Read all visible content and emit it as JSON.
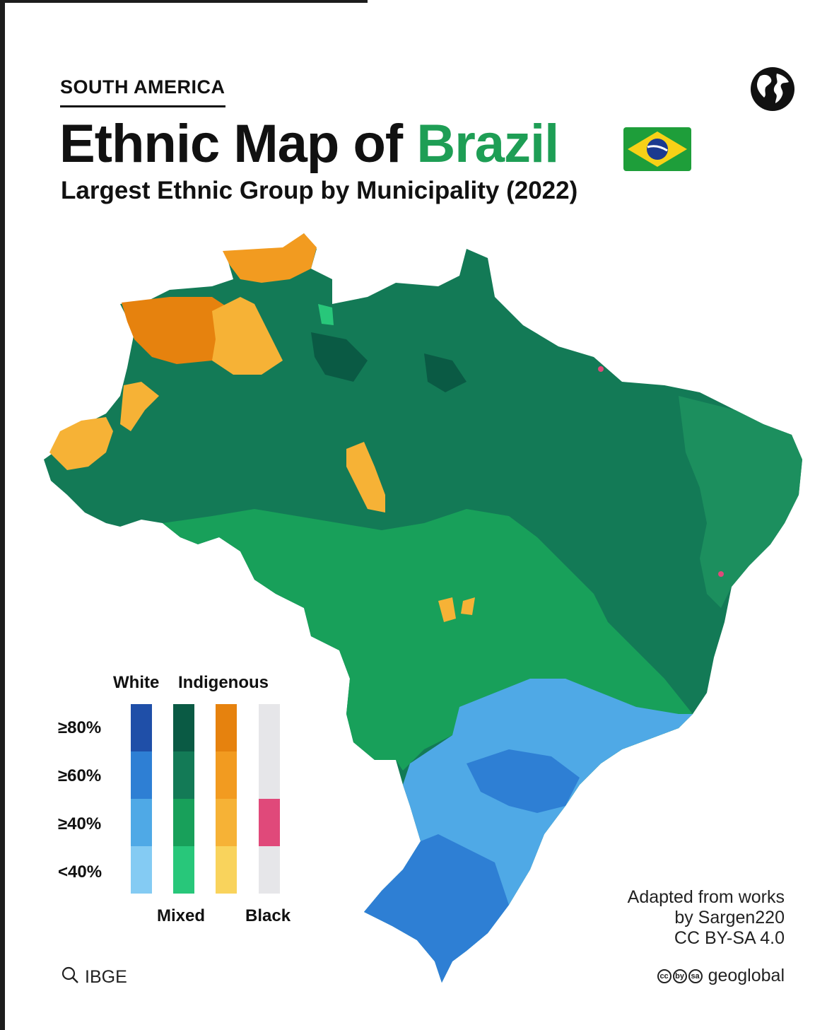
{
  "header": {
    "kicker": "SOUTH AMERICA",
    "title_lead": "Ethnic Map of",
    "title_accent": "Brazil",
    "subtitle": "Largest Ethnic Group by Municipality (2022)",
    "flag_icon": "brazil-flag-icon",
    "globe_icon": "globe-icon"
  },
  "legend": {
    "top_labels": [
      "White",
      "Indigenous"
    ],
    "bottom_labels": [
      "Mixed",
      "Black"
    ],
    "levels": [
      "≥80%",
      "≥60%",
      "≥40%",
      "<40%"
    ],
    "bars": [
      {
        "group": "White",
        "colors": [
          "#1f4fa8",
          "#2e7fd4",
          "#4fa9e6",
          "#84cbf3"
        ]
      },
      {
        "group": "Mixed",
        "colors": [
          "#0a5a44",
          "#137a56",
          "#18a05a",
          "#28c77a"
        ]
      },
      {
        "group": "Indigenous",
        "colors": [
          "#e6820e",
          "#f29b20",
          "#f6b236",
          "#f9d35c"
        ]
      },
      {
        "group": "Black",
        "colors": [
          "#e6e6e9",
          "#e6e6e9",
          "#e0497a",
          "#e6e6e9"
        ]
      }
    ]
  },
  "credit": {
    "line1": "Adapted from works",
    "line2": "by Sargen220",
    "line3": "CC BY-SA 4.0"
  },
  "source": {
    "icon": "search-icon",
    "label": "IBGE"
  },
  "brand": {
    "license_icons": [
      "cc",
      "by",
      "sa"
    ],
    "label": "geoglobal"
  },
  "colors": {
    "mixed_dominant": "#137a56",
    "mixed_mid": "#18a05a",
    "white_dominant": "#2e7fd4",
    "indigenous_dominant": "#f6b236",
    "title_accent": "#1e9e55"
  }
}
